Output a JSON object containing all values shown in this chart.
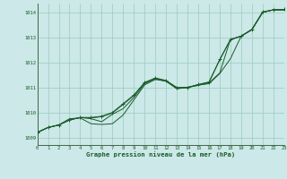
{
  "title": "Graphe pression niveau de la mer (hPa)",
  "bg_color": "#cce8e8",
  "grid_color": "#99ccbb",
  "line_color": "#1a5c2a",
  "x_ticks": [
    0,
    1,
    2,
    3,
    4,
    5,
    6,
    7,
    8,
    9,
    10,
    11,
    12,
    13,
    14,
    15,
    16,
    17,
    18,
    19,
    20,
    21,
    22,
    23
  ],
  "y_ticks": [
    1009,
    1010,
    1011,
    1012,
    1013,
    1014
  ],
  "ylim": [
    1008.7,
    1014.35
  ],
  "xlim": [
    0,
    23
  ],
  "series": [
    [
      1009.2,
      1009.4,
      1009.5,
      1009.75,
      1009.78,
      1009.55,
      1009.52,
      1009.55,
      1009.9,
      1010.5,
      1011.1,
      1011.32,
      1011.25,
      1010.95,
      1011.0,
      1011.1,
      1011.15,
      1011.55,
      1012.15,
      1013.05,
      1013.3,
      1014.0,
      1014.1,
      1014.1
    ],
    [
      1009.2,
      1009.4,
      1009.5,
      1009.7,
      1009.8,
      1009.75,
      1009.63,
      1009.93,
      1010.15,
      1010.6,
      1011.15,
      1011.35,
      1011.25,
      1010.95,
      1011.0,
      1011.08,
      1011.18,
      1011.58,
      1012.92,
      1013.05,
      1013.32,
      1014.0,
      1014.1,
      1014.1
    ],
    [
      1009.2,
      1009.4,
      1009.5,
      1009.7,
      1009.8,
      1009.78,
      1009.83,
      1009.98,
      1010.32,
      1010.68,
      1011.18,
      1011.35,
      1011.25,
      1010.98,
      1011.0,
      1011.1,
      1011.2,
      1012.1,
      1012.9,
      1013.05,
      1013.32,
      1014.0,
      1014.1,
      1014.1
    ],
    [
      1009.2,
      1009.4,
      1009.5,
      1009.7,
      1009.8,
      1009.8,
      1009.85,
      1010.0,
      1010.35,
      1010.7,
      1011.2,
      1011.38,
      1011.28,
      1011.0,
      1011.0,
      1011.12,
      1011.22,
      1012.12,
      1012.92,
      1013.05,
      1013.32,
      1014.02,
      1014.1,
      1014.12
    ]
  ]
}
